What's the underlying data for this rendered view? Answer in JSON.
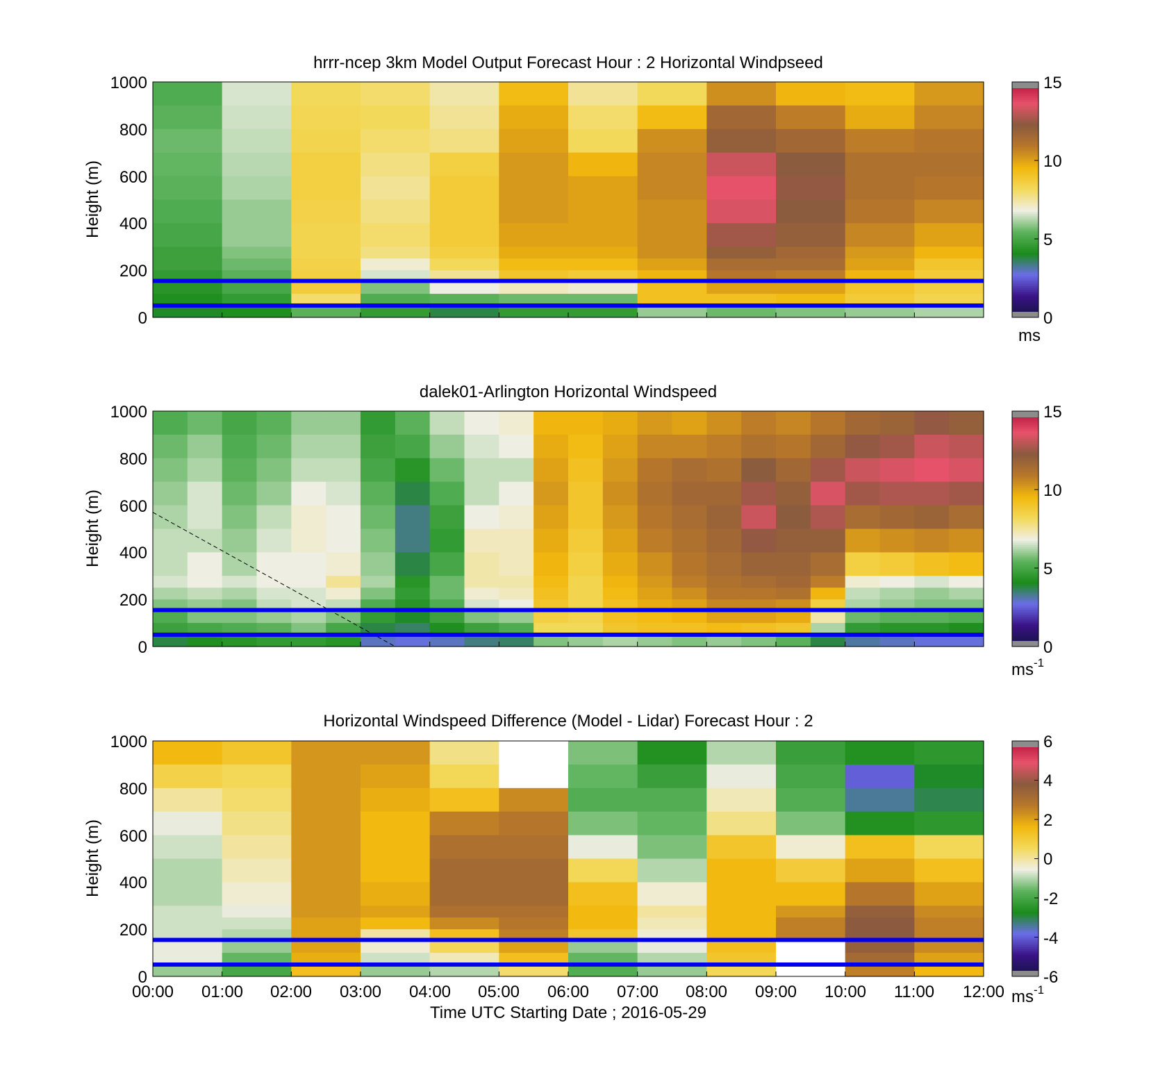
{
  "colormap_speed": [
    "#12133f",
    "#3a1387",
    "#6a6ee8",
    "#1a8c1a",
    "#5db35d",
    "#f0efe4",
    "#f3d95a",
    "#f2b80d",
    "#b8772a",
    "#8a5a3f",
    "#e8526a",
    "#b5103a"
  ],
  "colormap_diff": [
    "#12133f",
    "#3a1387",
    "#6a6ee8",
    "#1a8c1a",
    "#5db35d",
    "#f0efe4",
    "#f3d95a",
    "#f2b80d",
    "#b8772a",
    "#8a5a3f",
    "#e8526a",
    "#b5103a"
  ],
  "range_line_color": "#0000ee",
  "range_lines_m": [
    155,
    50
  ],
  "chart_data": [
    {
      "type": "heatmap",
      "title": "hrrr-ncep 3km Model Output   Forecast Hour : 2 Horizontal Windpseed",
      "xlabel": "",
      "ylabel": "Height (m)",
      "xlim": [
        0,
        12
      ],
      "ylim": [
        0,
        1000
      ],
      "yticks": [
        "0",
        "200",
        "400",
        "600",
        "800",
        "1000"
      ],
      "colorbar": {
        "ticks": [
          "0",
          "5",
          "10",
          "15"
        ],
        "range": [
          0,
          15
        ],
        "unit": "ms"
      },
      "hours": [
        0,
        1,
        2,
        3,
        4,
        5,
        6,
        7,
        8,
        9,
        10,
        11
      ],
      "heights": [
        1000,
        900,
        800,
        700,
        600,
        500,
        400,
        300,
        250,
        200,
        150,
        100,
        50
      ],
      "values": [
        [
          5.2,
          5.4,
          5.6,
          5.5,
          5.4,
          5.2,
          5.0,
          4.8,
          4.8,
          4.6,
          4.4,
          4.2,
          4.0
        ],
        [
          6.6,
          6.5,
          6.4,
          6.3,
          6.2,
          6.0,
          6.0,
          5.8,
          5.6,
          5.4,
          5.0,
          4.6,
          4.2
        ],
        [
          8.2,
          8.3,
          8.4,
          8.6,
          8.6,
          8.5,
          8.4,
          8.4,
          8.5,
          8.6,
          8.7,
          8.0,
          5.4
        ],
        [
          8.0,
          8.2,
          8.0,
          7.8,
          7.6,
          7.8,
          8.0,
          7.8,
          7.0,
          6.6,
          5.8,
          5.2,
          4.6
        ],
        [
          7.4,
          7.6,
          7.8,
          8.6,
          8.8,
          8.8,
          8.8,
          8.6,
          8.2,
          7.6,
          6.8,
          5.4,
          3.8
        ],
        [
          9.4,
          9.8,
          10.0,
          10.2,
          10.2,
          10.2,
          10.0,
          9.8,
          9.4,
          9.0,
          7.2,
          5.6,
          4.6
        ],
        [
          7.6,
          8.0,
          8.2,
          9.6,
          10.0,
          10.0,
          10.0,
          9.8,
          9.4,
          8.8,
          7.0,
          5.6,
          4.6
        ],
        [
          8.2,
          9.4,
          10.4,
          10.6,
          10.6,
          10.4,
          10.4,
          10.4,
          10.0,
          9.6,
          9.2,
          9.2,
          6.0
        ],
        [
          10.4,
          11.6,
          12.0,
          13.2,
          13.6,
          13.4,
          12.6,
          12.0,
          11.4,
          11.0,
          10.0,
          9.2,
          5.6
        ],
        [
          9.6,
          10.8,
          11.6,
          12.2,
          12.4,
          12.2,
          12.0,
          11.6,
          11.4,
          10.8,
          10.0,
          9.4,
          5.8
        ],
        [
          9.4,
          9.8,
          10.8,
          11.2,
          11.2,
          11.0,
          10.6,
          10.2,
          10.0,
          9.6,
          9.0,
          8.8,
          6.0
        ],
        [
          10.2,
          10.6,
          11.0,
          11.2,
          11.0,
          10.6,
          10.0,
          9.6,
          9.0,
          8.8,
          8.6,
          8.4,
          6.2
        ]
      ]
    },
    {
      "type": "heatmap",
      "title": "dalek01-Arlington  Horizontal Windspeed",
      "xlabel": "",
      "ylabel": "Height (m)",
      "xlim": [
        0,
        12
      ],
      "ylim": [
        0,
        1000
      ],
      "yticks": [
        "0",
        "200",
        "400",
        "600",
        "800",
        "1000"
      ],
      "colorbar": {
        "ticks": [
          "0",
          "5",
          "10",
          "15"
        ],
        "range": [
          0,
          15
        ],
        "unit": "ms",
        "unit_exp": "-1"
      },
      "hours": [
        0.0,
        0.5,
        1.0,
        1.5,
        2.0,
        2.5,
        3.0,
        3.5,
        4.0,
        4.5,
        5.0,
        5.5,
        6.0,
        6.5,
        7.0,
        7.5,
        8.0,
        8.5,
        9.0,
        9.5,
        10.0,
        10.5,
        11.0,
        11.5
      ],
      "heights": [
        1000,
        900,
        800,
        700,
        600,
        500,
        400,
        300,
        250,
        200,
        150,
        100,
        50
      ],
      "values": [
        [
          5.2,
          5.6,
          5.8,
          6.0,
          6.2,
          6.4,
          6.4,
          6.6,
          6.2,
          5.8,
          5.2,
          4.8,
          3.8
        ],
        [
          5.6,
          6.0,
          6.2,
          6.6,
          6.6,
          6.4,
          6.8,
          6.8,
          6.4,
          6.0,
          5.8,
          5.0,
          4.2
        ],
        [
          5.0,
          5.2,
          5.4,
          5.6,
          5.8,
          6.0,
          6.2,
          6.6,
          6.2,
          5.8,
          5.8,
          5.2,
          4.4
        ],
        [
          5.4,
          5.6,
          5.8,
          6.0,
          6.4,
          6.6,
          6.8,
          6.8,
          6.6,
          6.4,
          6.0,
          5.4,
          4.6
        ],
        [
          6.0,
          6.2,
          6.4,
          6.8,
          7.0,
          7.0,
          6.8,
          6.8,
          6.6,
          6.6,
          6.2,
          5.8,
          4.6
        ],
        [
          6.0,
          6.2,
          6.4,
          6.6,
          6.8,
          6.8,
          7.0,
          7.6,
          7.0,
          6.4,
          5.8,
          5.0,
          4.4
        ],
        [
          4.6,
          4.8,
          5.0,
          5.4,
          5.6,
          5.8,
          6.0,
          6.2,
          5.8,
          5.2,
          4.6,
          3.8,
          3.0
        ],
        [
          5.4,
          5.0,
          4.4,
          3.8,
          3.4,
          3.4,
          3.8,
          4.4,
          4.6,
          4.4,
          4.0,
          3.6,
          2.8
        ],
        [
          6.4,
          6.0,
          5.6,
          5.2,
          4.8,
          4.6,
          5.0,
          5.6,
          5.6,
          5.2,
          4.8,
          4.2,
          3.0
        ],
        [
          6.8,
          6.6,
          6.4,
          6.4,
          6.8,
          7.2,
          7.4,
          7.4,
          7.0,
          6.6,
          5.8,
          4.8,
          3.4
        ],
        [
          7.0,
          6.8,
          6.4,
          6.8,
          7.0,
          7.2,
          7.2,
          7.4,
          7.2,
          6.8,
          6.0,
          5.2,
          3.6
        ],
        [
          9.6,
          9.8,
          10.0,
          10.2,
          10.0,
          9.8,
          9.6,
          9.4,
          9.2,
          9.0,
          8.6,
          8.2,
          5.8
        ],
        [
          9.6,
          9.4,
          9.2,
          9.0,
          9.0,
          8.8,
          8.6,
          8.4,
          8.4,
          8.4,
          8.4,
          8.2,
          6.0
        ],
        [
          9.8,
          10.0,
          10.2,
          10.4,
          10.2,
          10.0,
          9.8,
          9.6,
          9.4,
          9.2,
          9.2,
          9.0,
          6.2
        ],
        [
          10.2,
          10.6,
          11.0,
          11.2,
          11.0,
          10.8,
          10.4,
          10.2,
          10.0,
          9.8,
          9.4,
          9.2,
          6.0
        ],
        [
          10.0,
          10.6,
          11.4,
          11.6,
          11.4,
          11.2,
          11.0,
          10.8,
          10.4,
          10.0,
          9.6,
          9.2,
          5.8
        ],
        [
          10.4,
          10.8,
          11.2,
          11.6,
          11.8,
          11.6,
          11.4,
          11.2,
          11.0,
          10.6,
          10.0,
          9.4,
          6.0
        ],
        [
          10.8,
          11.2,
          12.2,
          12.6,
          13.2,
          12.4,
          11.8,
          11.4,
          11.0,
          10.6,
          10.0,
          9.2,
          5.8
        ],
        [
          10.6,
          11.0,
          11.6,
          12.0,
          12.2,
          12.0,
          11.8,
          11.6,
          11.2,
          10.4,
          9.8,
          9.0,
          5.4
        ],
        [
          11.0,
          11.6,
          12.6,
          13.4,
          12.8,
          12.0,
          11.4,
          10.8,
          9.6,
          8.6,
          7.4,
          6.2,
          3.8
        ],
        [
          11.6,
          12.4,
          13.2,
          12.6,
          11.4,
          10.2,
          8.6,
          7.0,
          6.4,
          6.2,
          5.6,
          4.6,
          3.2
        ],
        [
          11.8,
          12.6,
          13.4,
          12.8,
          11.6,
          10.4,
          8.8,
          6.8,
          6.2,
          6.0,
          5.4,
          4.4,
          3.0
        ],
        [
          12.4,
          13.2,
          13.6,
          12.8,
          11.8,
          10.6,
          9.2,
          6.6,
          6.0,
          5.8,
          5.4,
          4.4,
          2.8
        ],
        [
          12.0,
          13.0,
          13.4,
          12.6,
          11.4,
          10.4,
          9.4,
          6.8,
          6.2,
          5.8,
          5.2,
          4.2,
          2.8
        ]
      ]
    },
    {
      "type": "heatmap",
      "title": "Horizontal Windspeed Difference (Model - Lidar) Forecast Hour : 2",
      "xlabel": "Time UTC  Starting Date ; 2016-05-29",
      "ylabel": "Height (m)",
      "xlim": [
        0,
        12
      ],
      "ylim": [
        0,
        1000
      ],
      "xticks": [
        "00:00",
        "01:00",
        "02:00",
        "03:00",
        "04:00",
        "05:00",
        "06:00",
        "07:00",
        "08:00",
        "09:00",
        "10:00",
        "11:00",
        "12:00"
      ],
      "yticks": [
        "0",
        "200",
        "400",
        "600",
        "800",
        "1000"
      ],
      "colorbar": {
        "ticks": [
          "-6",
          "-4",
          "-2",
          "0",
          "2",
          "4",
          "6"
        ],
        "range": [
          -6,
          6
        ],
        "unit": "ms",
        "unit_exp": "-1"
      },
      "hours": [
        0,
        1,
        2,
        3,
        4,
        5,
        6,
        7,
        8,
        9,
        10,
        11
      ],
      "heights": [
        1000,
        900,
        800,
        700,
        600,
        500,
        400,
        300,
        250,
        200,
        150,
        100,
        50
      ],
      "values": [
        [
          1.6,
          0.8,
          0.0,
          -0.6,
          -0.8,
          -1.0,
          -1.0,
          -0.8,
          -0.8,
          -0.8,
          -0.6,
          -0.6,
          -1.2
        ],
        [
          1.2,
          0.6,
          0.4,
          0.2,
          0.0,
          -0.2,
          -0.4,
          -0.6,
          -0.8,
          -1.0,
          -1.2,
          -1.6,
          -2.0
        ],
        [
          2.2,
          2.2,
          2.2,
          2.2,
          2.2,
          2.2,
          2.2,
          2.2,
          2.0,
          2.0,
          2.0,
          1.8,
          1.4
        ],
        [
          2.2,
          2.0,
          1.8,
          1.6,
          1.6,
          1.6,
          1.8,
          2.0,
          1.6,
          0.0,
          -0.4,
          -0.8,
          -1.2
        ],
        [
          0.2,
          0.6,
          1.4,
          2.6,
          3.0,
          3.2,
          3.2,
          3.0,
          2.4,
          1.4,
          0.6,
          -0.2,
          -1.0
        ],
        [
          null,
          null,
          2.4,
          2.8,
          3.0,
          3.2,
          3.2,
          3.0,
          2.8,
          2.6,
          2.0,
          1.4,
          0.4
        ],
        [
          -1.4,
          -1.6,
          -1.8,
          -1.4,
          -0.6,
          0.6,
          1.4,
          1.6,
          1.6,
          1.2,
          -1.2,
          -1.6,
          -1.8
        ],
        [
          -2.6,
          -2.2,
          -1.8,
          -1.6,
          -1.4,
          -1.0,
          -0.4,
          0.0,
          -0.2,
          -0.4,
          -0.6,
          -1.0,
          -1.2
        ],
        [
          -1.0,
          -0.6,
          -0.2,
          0.2,
          1.2,
          1.6,
          1.6,
          1.6,
          1.6,
          1.6,
          1.4,
          1.2,
          0.6
        ],
        [
          -2.2,
          -2.0,
          -1.8,
          -1.4,
          -0.4,
          1.0,
          1.6,
          2.2,
          2.6,
          2.6,
          null,
          null,
          null
        ],
        [
          -2.6,
          -4.0,
          -3.4,
          -2.6,
          1.4,
          2.0,
          2.8,
          3.6,
          3.8,
          3.8,
          3.6,
          3.2,
          2.6
        ],
        [
          -2.4,
          -2.8,
          -3.0,
          -2.4,
          0.6,
          1.4,
          2.0,
          2.4,
          2.6,
          2.6,
          2.4,
          2.0,
          1.6
        ]
      ]
    }
  ]
}
